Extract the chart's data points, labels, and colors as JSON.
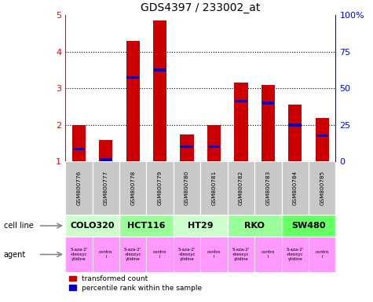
{
  "title": "GDS4397 / 233002_at",
  "samples": [
    "GSM800776",
    "GSM800777",
    "GSM800778",
    "GSM800779",
    "GSM800780",
    "GSM800781",
    "GSM800782",
    "GSM800783",
    "GSM800784",
    "GSM800785"
  ],
  "red_values": [
    2.0,
    1.6,
    4.3,
    4.85,
    1.75,
    2.0,
    3.15,
    3.1,
    2.55,
    2.2
  ],
  "blue_values": [
    1.35,
    1.05,
    3.3,
    3.5,
    1.4,
    1.4,
    2.65,
    2.6,
    2.0,
    1.7
  ],
  "ylim_left": [
    1,
    5
  ],
  "ylim_right": [
    0,
    100
  ],
  "yticks_left": [
    1,
    2,
    3,
    4,
    5
  ],
  "yticks_right": [
    0,
    25,
    50,
    75,
    100
  ],
  "ytick_labels_right": [
    "0",
    "25",
    "50",
    "75",
    "100%"
  ],
  "cell_defs": [
    {
      "label": "COLO320",
      "start": 0,
      "end": 2,
      "color": "#ccffcc"
    },
    {
      "label": "HCT116",
      "start": 2,
      "end": 4,
      "color": "#99ff99"
    },
    {
      "label": "HT29",
      "start": 4,
      "end": 6,
      "color": "#ccffcc"
    },
    {
      "label": "RKO",
      "start": 6,
      "end": 8,
      "color": "#99ff99"
    },
    {
      "label": "SW480",
      "start": 8,
      "end": 10,
      "color": "#66ff66"
    }
  ],
  "agent_labels": [
    "5-aza-2'\n-deoxyc\nytidine",
    "contro\nl",
    "5-aza-2'\n-deoxyc\nytidine",
    "contro\nl",
    "5-aza-2'\n-deoxyc\nytidine",
    "contro\nl",
    "5-aza-2'\n-deoxyc\nytidine",
    "contro\nl",
    "5-aza-2'\n-deoxyc\nytidine",
    "contro\nl"
  ],
  "agent_color": "#ff99ff",
  "gsm_color": "#c8c8c8",
  "bar_color": "#cc0000",
  "blue_color": "#0000cc",
  "bar_width": 0.5,
  "legend_red": "transformed count",
  "legend_blue": "percentile rank within the sample"
}
